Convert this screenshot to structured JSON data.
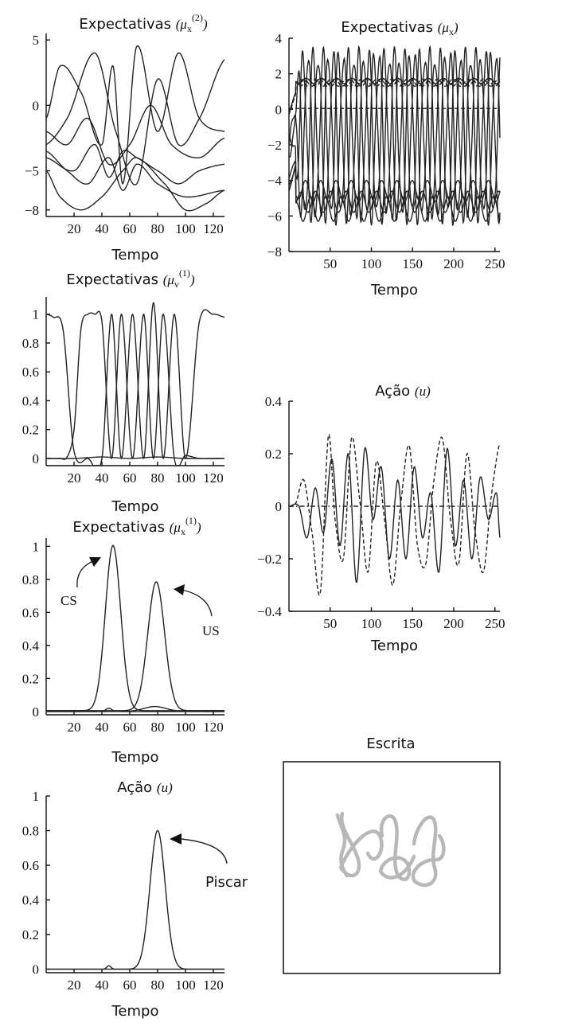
{
  "chart_data": [
    {
      "id": "p1",
      "type": "line",
      "title": "Expectativas",
      "title_math": "μ",
      "title_sub": "x",
      "title_sup": "(2)",
      "xlabel": "Tempo",
      "xlim": [
        0,
        128
      ],
      "ylim": [
        -8.5,
        5.5
      ],
      "xticks": [
        20,
        40,
        60,
        80,
        100,
        120
      ],
      "yticks": [
        5,
        0,
        -5,
        -8
      ],
      "series": [
        {
          "style": "solid",
          "x": [
            0,
            10,
            25,
            40,
            48,
            55,
            65,
            80,
            95,
            110,
            128
          ],
          "y": [
            -1,
            3,
            1,
            -3,
            3,
            -6,
            4.5,
            -2,
            4,
            -1,
            -2
          ]
        },
        {
          "style": "solid",
          "x": [
            0,
            15,
            35,
            50,
            65,
            80,
            95,
            110,
            128
          ],
          "y": [
            -3,
            -1,
            4,
            -2,
            -6,
            2,
            -3,
            -1,
            3.5
          ]
        },
        {
          "style": "solid",
          "x": [
            0,
            15,
            30,
            45,
            60,
            75,
            90,
            110,
            128
          ],
          "y": [
            -2,
            -3,
            -1,
            -4.5,
            -3,
            0,
            -3,
            -4,
            -2.5
          ]
        },
        {
          "style": "solid",
          "x": [
            0,
            20,
            35,
            45,
            55,
            65,
            80,
            95,
            110,
            128
          ],
          "y": [
            -4,
            -5,
            -3,
            -5.5,
            -3.5,
            -4,
            -5,
            -6,
            -5,
            -4.5
          ]
        },
        {
          "style": "solid",
          "x": [
            0,
            15,
            30,
            45,
            55,
            65,
            80,
            100,
            128
          ],
          "y": [
            -3.5,
            -5,
            -6,
            -4,
            -6.5,
            -4.5,
            -6,
            -7,
            -6.5
          ]
        },
        {
          "style": "solid",
          "x": [
            0,
            10,
            25,
            40,
            55,
            65,
            85,
            100,
            115,
            128
          ],
          "y": [
            -5,
            -7,
            -8,
            -7,
            -5,
            -4,
            -6,
            -8,
            -7.5,
            -6.5
          ]
        }
      ]
    },
    {
      "id": "p2",
      "type": "line",
      "title": "Expectativas",
      "title_math": "μ",
      "title_sub": "x",
      "title_sup": "",
      "xlabel": "Tempo",
      "xlim": [
        0,
        256
      ],
      "ylim": [
        -8,
        4
      ],
      "xticks": [
        50,
        100,
        150,
        200,
        250
      ],
      "yticks": [
        4,
        2,
        0,
        -2,
        -4,
        -6,
        -8
      ],
      "period": 18.5,
      "phase_offsets_deg": [
        0,
        60,
        120,
        180,
        240,
        300
      ],
      "series": [
        {
          "style": "dashed",
          "kind": "const",
          "mean": 0.05
        },
        {
          "style": "dashed",
          "kind": "wave",
          "mean": 1.5,
          "amp": 0.2,
          "phase_deg": 0
        },
        {
          "style": "dashed",
          "kind": "wave",
          "mean": 1.5,
          "amp": 0.2,
          "phase_deg": 90
        },
        {
          "style": "dashed",
          "kind": "wave",
          "mean": 1.5,
          "amp": 0.2,
          "phase_deg": 180
        },
        {
          "style": "solid",
          "kind": "wave",
          "mean": 1.6,
          "amp": 0.15,
          "phase_deg": 45
        },
        {
          "style": "solid",
          "kind": "wave",
          "mean": -1.5,
          "amp": 4.5,
          "phase_deg": 0
        },
        {
          "style": "solid",
          "kind": "wave",
          "mean": -1.5,
          "amp": 4.5,
          "phase_deg": 120
        },
        {
          "style": "solid",
          "kind": "wave",
          "mean": -1.5,
          "amp": 4.5,
          "phase_deg": 240
        },
        {
          "style": "solid",
          "kind": "wave",
          "mean": -4.6,
          "amp": 0.6,
          "phase_deg": 60
        },
        {
          "style": "solid",
          "kind": "wave",
          "mean": -5.2,
          "amp": 0.6,
          "phase_deg": 180
        },
        {
          "style": "solid",
          "kind": "wave",
          "mean": -5.6,
          "amp": 0.7,
          "phase_deg": 300
        }
      ]
    },
    {
      "id": "p3",
      "type": "line",
      "title": "Expectativas",
      "title_math": "μ",
      "title_sub": "v",
      "title_sup": "(1)",
      "xlabel": "Tempo",
      "xlim": [
        0,
        128
      ],
      "ylim": [
        -0.05,
        1.12
      ],
      "xticks": [
        20,
        40,
        60,
        80,
        100,
        120
      ],
      "yticks": [
        1,
        0.8,
        0.6,
        0.4,
        0.2,
        0
      ],
      "series": [
        {
          "style": "solid",
          "x": [
            0,
            5,
            12,
            20,
            30,
            40,
            47,
            54,
            62,
            70,
            77,
            84,
            92,
            100,
            110,
            120,
            128
          ],
          "y": [
            1,
            0.98,
            0.9,
            0.05,
            0,
            0,
            1,
            0,
            1,
            0,
            1.08,
            0,
            1,
            0,
            0.95,
            1,
            0.98
          ]
        },
        {
          "style": "solid",
          "x": [
            0,
            10,
            15,
            20,
            25,
            30,
            35,
            40,
            47,
            54,
            62,
            70,
            77,
            84,
            92,
            100,
            110,
            128
          ],
          "y": [
            0,
            0,
            0.01,
            0.2,
            0.9,
            1,
            1,
            0.95,
            0,
            1,
            0,
            1,
            0,
            1,
            0,
            0.02,
            0,
            0
          ]
        },
        {
          "style": "solid",
          "x": [
            0,
            20,
            40,
            60,
            80,
            100,
            128
          ],
          "y": [
            0,
            0,
            0.01,
            0,
            0.01,
            0,
            0
          ]
        }
      ]
    },
    {
      "id": "p4",
      "type": "line",
      "title": "Ação",
      "title_math": "u",
      "title_sub": "",
      "title_sup": "",
      "xlabel": "Tempo",
      "xlim": [
        0,
        256
      ],
      "ylim": [
        -0.4,
        0.4
      ],
      "xticks": [
        50,
        100,
        150,
        200,
        250
      ],
      "yticks": [
        0.4,
        0.2,
        0,
        -0.2,
        -0.4
      ],
      "series": [
        {
          "style": "solid",
          "x": [
            0,
            12,
            22,
            32,
            42,
            52,
            62,
            72,
            82,
            92,
            102,
            112,
            122,
            132,
            142,
            152,
            162,
            172,
            182,
            192,
            202,
            212,
            222,
            232,
            242,
            252,
            256
          ],
          "y": [
            0,
            0,
            -0.12,
            0.07,
            -0.1,
            0.18,
            -0.15,
            0.2,
            -0.29,
            0.22,
            -0.05,
            0.15,
            -0.2,
            0.1,
            -0.2,
            0.15,
            -0.12,
            0.05,
            -0.25,
            0.22,
            -0.15,
            0.1,
            -0.2,
            0.11,
            -0.05,
            0.05,
            -0.12
          ]
        },
        {
          "style": "dashed",
          "x": [
            0,
            8,
            18,
            28,
            38,
            48,
            56,
            66,
            76,
            86,
            96,
            106,
            116,
            126,
            136,
            146,
            156,
            166,
            176,
            186,
            196,
            206,
            216,
            226,
            236,
            246,
            256
          ],
          "y": [
            0,
            0.01,
            0.1,
            -0.1,
            -0.33,
            0.27,
            -0.05,
            -0.2,
            0.26,
            0.02,
            -0.25,
            0.17,
            -0.05,
            -0.3,
            0.02,
            0.23,
            -0.15,
            -0.22,
            0.1,
            0.26,
            -0.05,
            -0.22,
            0.2,
            -0.1,
            -0.25,
            0.05,
            0.24
          ]
        },
        {
          "style": "dashdot",
          "x": [
            0,
            256
          ],
          "y": [
            0,
            0
          ]
        }
      ]
    },
    {
      "id": "p5",
      "type": "line",
      "title": "Expectativas",
      "title_math": "μ",
      "title_sub": "x",
      "title_sup": "(1)",
      "xlabel": "Tempo",
      "xlim": [
        0,
        128
      ],
      "ylim": [
        -0.02,
        1.05
      ],
      "xticks": [
        20,
        40,
        60,
        80,
        100,
        120
      ],
      "yticks": [
        1,
        0.8,
        0.6,
        0.4,
        0.2,
        0
      ],
      "annotations": [
        {
          "text": "CS"
        },
        {
          "text": "US"
        }
      ],
      "series": [
        {
          "style": "solid",
          "kind": "gauss",
          "center": 48,
          "width": 5.5,
          "height": 1.0,
          "base": 0.005
        },
        {
          "style": "solid",
          "kind": "gauss",
          "center": 79,
          "width": 6.0,
          "height": 0.78,
          "base": 0.005
        },
        {
          "style": "solid",
          "kind": "gauss",
          "center": 78,
          "width": 8.0,
          "height": 0.03,
          "base": 0.0
        },
        {
          "style": "solid",
          "kind": "gauss",
          "center": 45,
          "width": 2.0,
          "height": 0.02,
          "base": 0.0
        }
      ]
    },
    {
      "id": "p6",
      "type": "line",
      "title": "Ação",
      "title_math": "u",
      "title_sub": "",
      "title_sup": "",
      "xlabel": "Tempo",
      "xlim": [
        0,
        128
      ],
      "ylim": [
        -0.02,
        1.0
      ],
      "xticks": [
        20,
        40,
        60,
        80,
        100,
        120
      ],
      "yticks": [
        1,
        0.8,
        0.6,
        0.4,
        0.2,
        0
      ],
      "annotations": [
        {
          "text": "Piscar"
        }
      ],
      "series": [
        {
          "style": "solid",
          "kind": "gauss",
          "center": 80,
          "width": 5.5,
          "height": 0.8,
          "base": 0.0
        },
        {
          "style": "solid",
          "kind": "gauss",
          "center": 45,
          "width": 1.5,
          "height": 0.02,
          "base": 0.0
        }
      ]
    }
  ],
  "escrita": {
    "title": "Escrita",
    "stroke_color": "#b8b8b8"
  }
}
